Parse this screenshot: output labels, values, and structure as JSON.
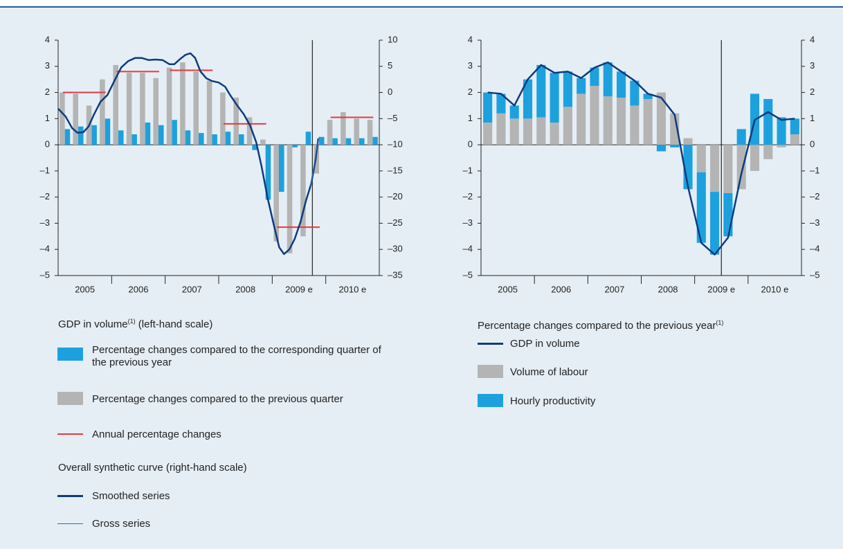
{
  "chart_data": [
    {
      "type": "bar",
      "year_labels": [
        "2005",
        "2006",
        "2007",
        "2008",
        "2009 e",
        "2010 e"
      ],
      "ylim": [
        -5,
        4
      ],
      "yticks": [
        4,
        3,
        2,
        1,
        0,
        {
          "value": -1,
          "label": "–1"
        },
        {
          "value": -2,
          "label": "–2"
        },
        {
          "value": -3,
          "label": "–3"
        },
        {
          "value": -4,
          "label": "–4"
        },
        {
          "value": -5,
          "label": "–5"
        }
      ],
      "y2lim": [
        -35,
        10
      ],
      "y2ticks": [
        10,
        5,
        0,
        {
          "value": -5,
          "label": "–5"
        },
        {
          "value": -10,
          "label": "–10"
        },
        {
          "value": -15,
          "label": "–15"
        },
        {
          "value": -20,
          "label": "–20"
        },
        {
          "value": -25,
          "label": "–25"
        },
        {
          "value": -30,
          "label": "–30"
        },
        {
          "value": -35,
          "label": "–35"
        }
      ],
      "xlim": [
        2005,
        2011
      ],
      "legend_title": "GDP in volume",
      "legend_title_note": "(1)",
      "legend_title_suffix": "(left-hand scale)",
      "curve_heading": "Overall synthetic curve (right-hand scale)",
      "series": [
        {
          "name": "Percentage changes compared to the corresponding quarter of the previous year",
          "kind": "bar",
          "color": "#1ca1de",
          "values": [
            0.6,
            0.7,
            0.75,
            1.0,
            0.55,
            0.4,
            0.85,
            0.75,
            0.95,
            0.55,
            0.45,
            0.4,
            0.5,
            0.4,
            -0.2,
            -2.1,
            -1.8,
            -0.1,
            0.5,
            0.3,
            0.25,
            0.25,
            0.25,
            0.3
          ]
        },
        {
          "name": "Percentage changes compared to the previous quarter",
          "kind": "bar",
          "color": "#b4b4b4",
          "values": [
            2.0,
            1.95,
            1.5,
            2.5,
            3.05,
            2.75,
            2.75,
            2.55,
            2.95,
            3.15,
            2.8,
            2.45,
            2.0,
            1.8,
            1.05,
            0.2,
            -3.7,
            -4.15,
            -3.5,
            -1.1,
            0.95,
            1.25,
            1.0,
            0.95
          ]
        },
        {
          "name": "Annual percentage changes",
          "kind": "annual",
          "color": "#e8383d",
          "values": [
            2.0,
            2.8,
            2.85,
            0.8,
            -3.15,
            1.05
          ]
        },
        {
          "name": "Smoothed series",
          "kind": "line",
          "axis": "y2",
          "color": "#0d3b7d",
          "width": 2.5,
          "x": [
            2005.0,
            2005.14,
            2005.26,
            2005.36,
            2005.47,
            2005.57,
            2005.67,
            2005.79,
            2005.92,
            2006.05,
            2006.18,
            2006.31,
            2006.44,
            2006.56,
            2006.69,
            2006.82,
            2006.95,
            2007.08,
            2007.17,
            2007.28,
            2007.38,
            2007.47,
            2007.56,
            2007.66,
            2007.77,
            2007.87,
            2008.0,
            2008.12,
            2008.22,
            2008.34,
            2008.47,
            2008.59,
            2008.7,
            2008.8,
            2008.91,
            2009.02,
            2009.13,
            2009.22,
            2009.32,
            2009.42,
            2009.53,
            2009.63,
            2009.73,
            2009.81,
            2009.86
          ],
          "values": [
            -3.1,
            -4.6,
            -6.8,
            -7.7,
            -7.6,
            -6.5,
            -4.2,
            -1.8,
            -0.5,
            2.2,
            4.8,
            6.0,
            6.6,
            6.6,
            6.2,
            6.3,
            6.2,
            5.4,
            5.4,
            6.4,
            7.2,
            7.5,
            6.6,
            4.0,
            2.7,
            2.2,
            1.9,
            1.1,
            -0.6,
            -2.4,
            -4.2,
            -6.4,
            -9.5,
            -14.1,
            -20.0,
            -24.9,
            -29.6,
            -30.9,
            -30.0,
            -28.0,
            -24.7,
            -20.7,
            -17.4,
            -12.8,
            -8.8
          ]
        },
        {
          "name": "Gross series",
          "kind": "line",
          "axis": "y2",
          "color": "#2f6db3",
          "width": 1.2,
          "x": [
            2009.72,
            2009.78,
            2009.84,
            2009.88
          ],
          "values": [
            -18.0,
            -14.0,
            -10.0,
            -8.5
          ]
        }
      ]
    },
    {
      "type": "stacked",
      "year_labels": [
        "2005",
        "2006",
        "2007",
        "2008",
        "2009 e",
        "2010 e"
      ],
      "ylim": [
        -5,
        4
      ],
      "yticks": [
        4,
        3,
        2,
        1,
        0,
        {
          "value": -1,
          "label": "–1"
        },
        {
          "value": -2,
          "label": "–2"
        },
        {
          "value": -3,
          "label": "–3"
        },
        {
          "value": -4,
          "label": "–4"
        },
        {
          "value": -5,
          "label": "–5"
        }
      ],
      "y2lim": [
        -5,
        4
      ],
      "y2ticks": [
        4,
        3,
        2,
        1,
        0,
        {
          "value": -1,
          "label": "–1"
        },
        {
          "value": -2,
          "label": "–2"
        },
        {
          "value": -3,
          "label": "–3"
        },
        {
          "value": -4,
          "label": "–4"
        },
        {
          "value": -5,
          "label": "–5"
        }
      ],
      "legend_title": "Percentage changes compared to the previous year",
      "legend_title_note": "(1)",
      "series": [
        {
          "name": "GDP in volume",
          "kind": "line",
          "color": "#0d3b7d",
          "width": 2.5,
          "values": [
            2.0,
            1.95,
            1.5,
            2.5,
            3.05,
            2.75,
            2.8,
            2.55,
            2.95,
            3.15,
            2.8,
            2.45,
            1.95,
            1.8,
            1.15,
            -1.6,
            -3.75,
            -4.2,
            -3.55,
            -1.1,
            0.95,
            1.25,
            0.95,
            1.0
          ]
        },
        {
          "name": "Volume of labour",
          "kind": "bar",
          "color": "#b4b4b4",
          "values": [
            0.85,
            1.2,
            1.0,
            1.0,
            1.05,
            0.85,
            1.45,
            1.95,
            2.25,
            1.85,
            1.8,
            1.5,
            1.75,
            2.0,
            1.2,
            0.25,
            -1.05,
            -1.8,
            -1.85,
            -1.7,
            -1.0,
            -0.55,
            -0.1,
            0.4
          ]
        },
        {
          "name": "Hourly productivity",
          "kind": "bar",
          "color": "#1ca1de",
          "values": [
            1.15,
            0.75,
            0.5,
            1.5,
            2.0,
            1.9,
            1.35,
            0.6,
            0.7,
            1.3,
            1.0,
            0.95,
            0.2,
            -0.25,
            -0.1,
            -1.7,
            -2.7,
            -2.4,
            -1.65,
            0.6,
            1.95,
            1.75,
            1.05,
            0.6
          ]
        }
      ]
    }
  ]
}
